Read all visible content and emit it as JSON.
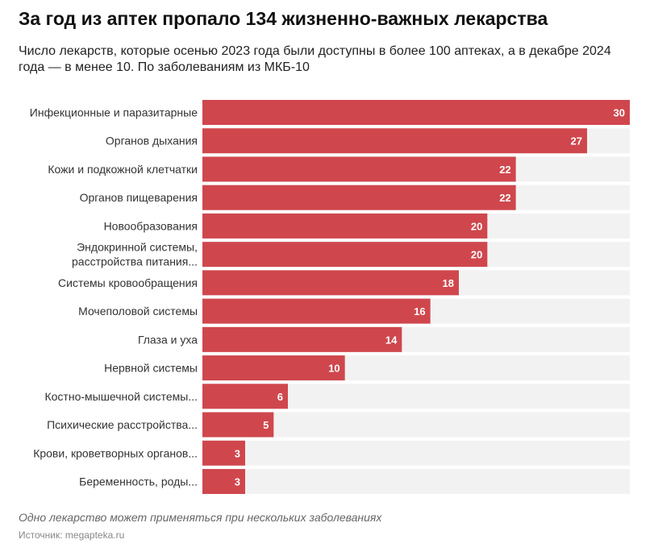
{
  "header": {
    "title": "За год из аптек пропало 134 жизненно-важных лекарства",
    "subtitle": "Число лекарств, которые осенью 2023 года были доступны в более 100 аптеках, а в декабре 2024 года — в менее 10. По заболеваниям из МКБ-10"
  },
  "chart_data": {
    "type": "bar",
    "orientation": "horizontal",
    "categories": [
      [
        "Инфекционные и паразитарные"
      ],
      [
        "Органов дыхания"
      ],
      [
        "Кожи и подкожной клетчатки"
      ],
      [
        "Органов пищеварения"
      ],
      [
        "Новообразования"
      ],
      [
        "Эндокринной системы,",
        "расстройства питания..."
      ],
      [
        "Системы кровообращения"
      ],
      [
        "Мочеполовой системы"
      ],
      [
        "Глаза и уха"
      ],
      [
        "Нервной системы"
      ],
      [
        "Костно-мышечной системы..."
      ],
      [
        "Психические расстройства..."
      ],
      [
        "Крови, кроветворных органов..."
      ],
      [
        "Беременность, роды..."
      ]
    ],
    "values": [
      30,
      27,
      22,
      22,
      20,
      20,
      18,
      16,
      14,
      10,
      6,
      5,
      3,
      3
    ],
    "xlim": [
      0,
      30
    ],
    "grid": false,
    "data_labels": true,
    "colors": {
      "bar": "#cf474d",
      "track": "#f2f2f2",
      "label": "#ffffff"
    }
  },
  "footer": {
    "note": "Одно лекарство может применяться при нескольких заболеваниях",
    "source": "Источник: megapteka.ru"
  }
}
